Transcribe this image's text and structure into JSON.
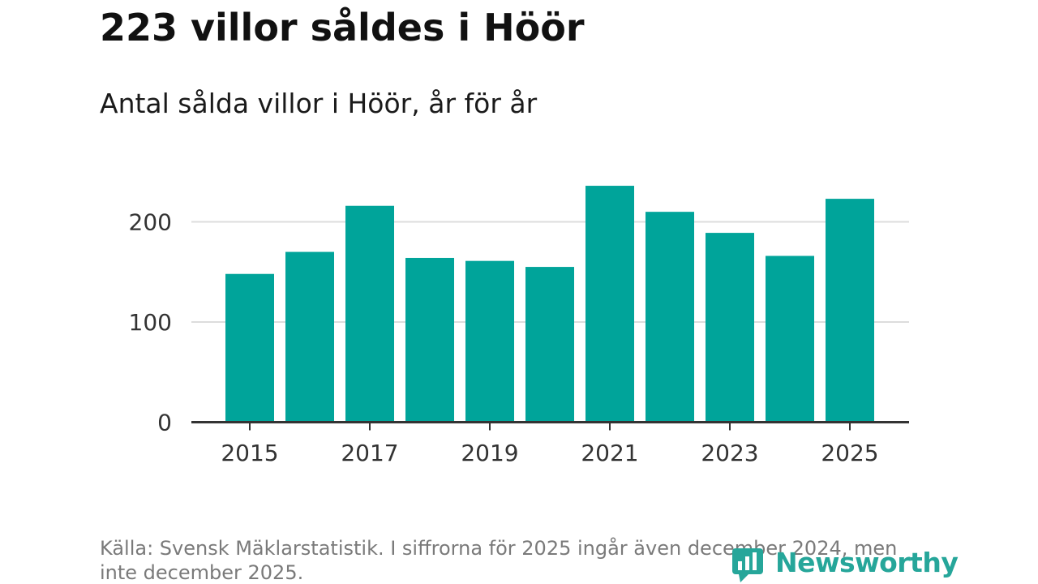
{
  "title": "223 villor såldes i Höör",
  "subtitle": "Antal sålda villor i Höör, år för år",
  "source_text": "Källa: Svensk Mäklarstatistik. I siffrorna för 2025 ingår även december 2024, men inte december 2025.",
  "brand": {
    "name": "Newsworthy",
    "icon": "newsworthy-logo-icon",
    "color": "#26a69a"
  },
  "colors": {
    "bar": "#00a49a",
    "grid": "#dddddd",
    "axis": "#333333"
  },
  "chart_data": {
    "type": "bar",
    "title": "Antal sålda villor i Höör, år för år",
    "xlabel": "",
    "ylabel": "",
    "categories": [
      "2015",
      "2016",
      "2017",
      "2018",
      "2019",
      "2020",
      "2021",
      "2022",
      "2023",
      "2024",
      "2025"
    ],
    "values": [
      148,
      170,
      216,
      164,
      161,
      155,
      236,
      210,
      189,
      166,
      223
    ],
    "xticks": [
      "2015",
      "2017",
      "2019",
      "2021",
      "2023",
      "2025"
    ],
    "yticks": [
      0,
      100,
      200
    ],
    "ylim": [
      0,
      250
    ],
    "grid": true,
    "legend": "none"
  }
}
